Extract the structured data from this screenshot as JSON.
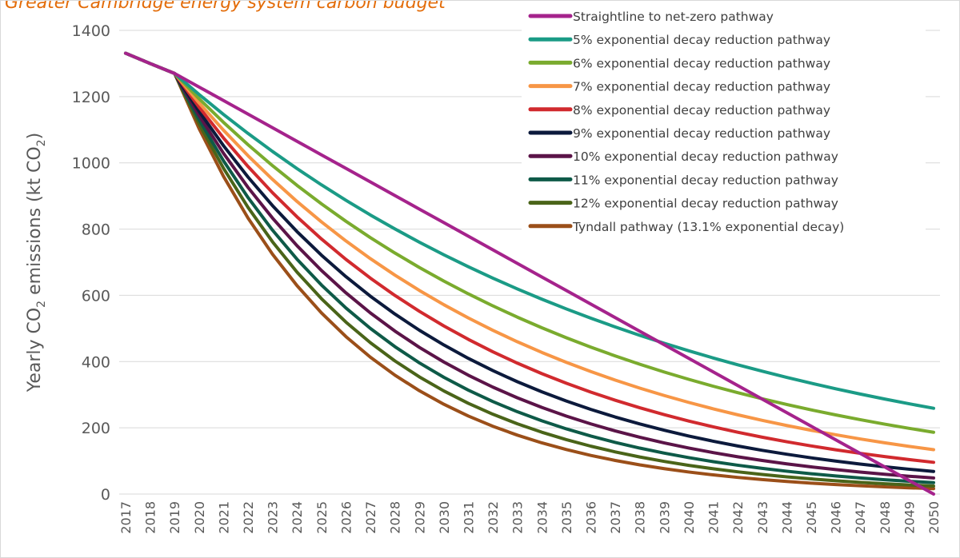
{
  "chart_data": {
    "type": "line",
    "title": "Greater Cambridge energy system carbon budget",
    "ylabel": "Yearly CO2 emissions (kt CO2)",
    "ylabel_parts": {
      "pre": "Yearly CO",
      "sub1": "2",
      "mid": " emissions (kt CO",
      "sub2": "2",
      "post": ")"
    },
    "xlabel": "",
    "ylim": [
      0,
      1400
    ],
    "yticks": [
      0,
      200,
      400,
      600,
      800,
      1000,
      1200,
      1400
    ],
    "grid": "horizontal",
    "legend_position": "top-right",
    "x": [
      "2017",
      "2018",
      "2019",
      "2020",
      "2021",
      "2022",
      "2023",
      "2024",
      "2025",
      "2026",
      "2027",
      "2028",
      "2029",
      "2030",
      "2031",
      "2032",
      "2033",
      "2034",
      "2035",
      "2036",
      "2037",
      "2038",
      "2039",
      "2040",
      "2041",
      "2042",
      "2043",
      "2044",
      "2045",
      "2046",
      "2047",
      "2048",
      "2049",
      "2050"
    ],
    "history": {
      "x_start": "2017",
      "values": [
        1331,
        1300,
        1270
      ]
    },
    "pathway_start": {
      "year": "2019",
      "value": 1270
    },
    "series": [
      {
        "name": "Straightline to net-zero pathway",
        "color": "#a5238c",
        "model": "linear",
        "start_value": 1270,
        "end_value": 0
      },
      {
        "name": "5% exponential decay reduction pathway",
        "color": "#1b9b86",
        "model": "exponential",
        "rate": 0.05
      },
      {
        "name": "6% exponential decay reduction pathway",
        "color": "#7aab2e",
        "model": "exponential",
        "rate": 0.06
      },
      {
        "name": "7% exponential decay reduction pathway",
        "color": "#f79646",
        "model": "exponential",
        "rate": 0.07
      },
      {
        "name": "8% exponential decay reduction pathway",
        "color": "#d12a2e",
        "model": "exponential",
        "rate": 0.08
      },
      {
        "name": "9% exponential decay reduction pathway",
        "color": "#0c1a3c",
        "model": "exponential",
        "rate": 0.09
      },
      {
        "name": "10% exponential decay reduction pathway",
        "color": "#5b1448",
        "model": "exponential",
        "rate": 0.1
      },
      {
        "name": "11% exponential decay reduction pathway",
        "color": "#0e5a48",
        "model": "exponential",
        "rate": 0.11
      },
      {
        "name": "12% exponential decay reduction pathway",
        "color": "#4a6419",
        "model": "exponential",
        "rate": 0.12
      },
      {
        "name": "Tyndall pathway (13.1% exponential decay)",
        "color": "#9b4f19",
        "model": "exponential",
        "rate": 0.131
      }
    ]
  }
}
